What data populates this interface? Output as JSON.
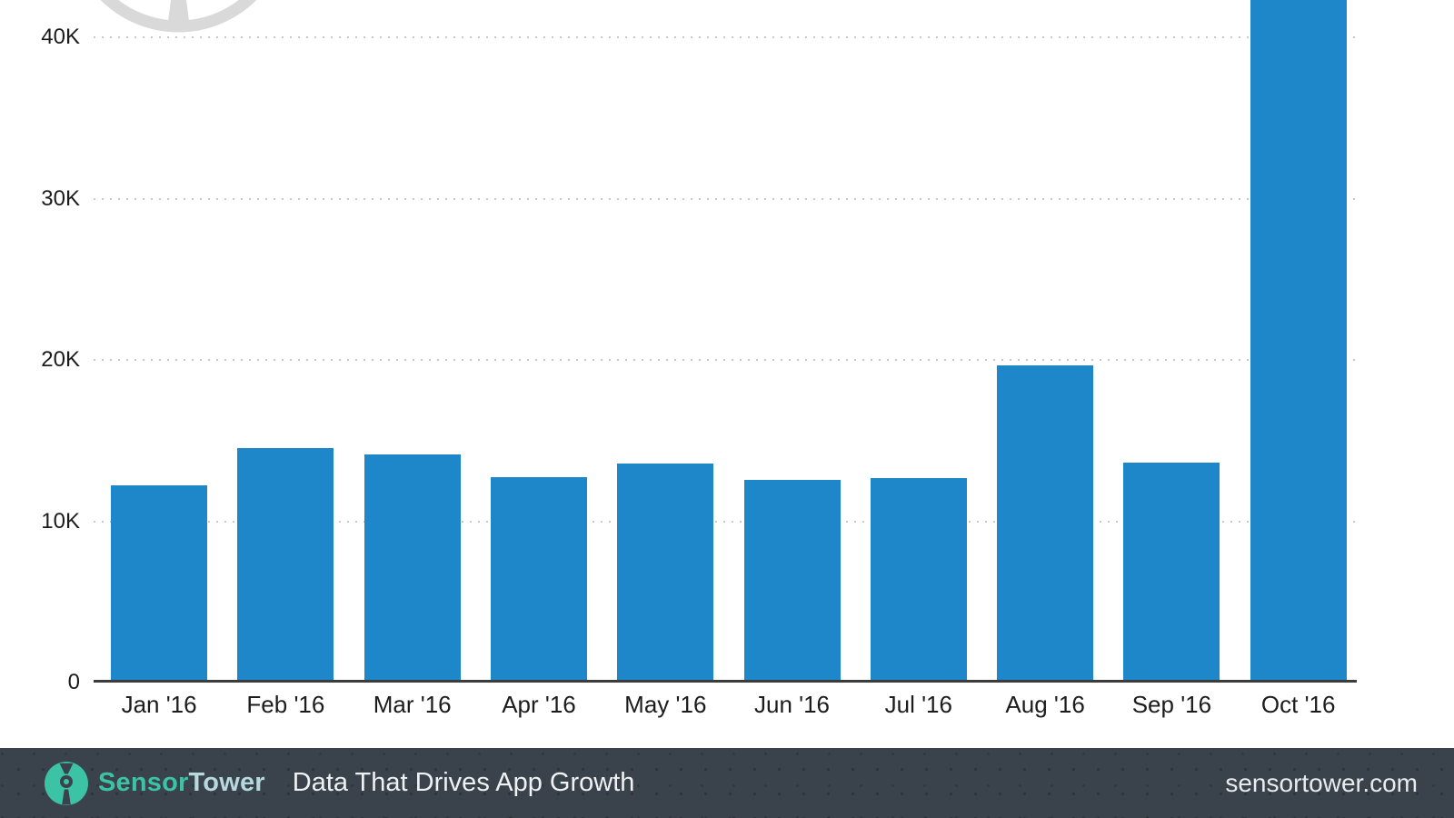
{
  "chart_data": {
    "type": "bar",
    "title": "",
    "categories": [
      "Jan '16",
      "Feb '16",
      "Mar '16",
      "Apr '16",
      "May '16",
      "Jun '16",
      "Jul '16",
      "Aug '16",
      "Sep '16",
      "Oct '16"
    ],
    "values_thousands": [
      12.2,
      14.5,
      14.1,
      12.7,
      13.5,
      12.5,
      12.6,
      19.6,
      13.6,
      42.5
    ],
    "october_bar_clipped_at_top_edge": true,
    "yticks": [
      {
        "label": "0",
        "value": 0
      },
      {
        "label": "10K",
        "value": 10
      },
      {
        "label": "20K",
        "value": 20
      },
      {
        "label": "30K",
        "value": 30
      },
      {
        "label": "40K",
        "value": 40
      }
    ],
    "ylim_visible_thousands": [
      0,
      42.3
    ],
    "xlabel": "",
    "ylabel": "",
    "legend": "none",
    "grid": "horizontal-dotted",
    "bar_color": "#1e87c9",
    "gridline_color": "#c9c9c9",
    "axis_line_color": "#3c3c3c",
    "tick_label_color": "#1b1b1b"
  },
  "watermark": {
    "description": "partial gray SensorTower circular logo cut off at top edge",
    "color": "#d9d9d9"
  },
  "footer": {
    "brand_first": "Sensor",
    "brand_second": "Tower",
    "tagline": "Data That Drives App Growth",
    "website": "sensortower.com",
    "background_color": "#3a424b",
    "teal_color": "#3cc2a5"
  }
}
